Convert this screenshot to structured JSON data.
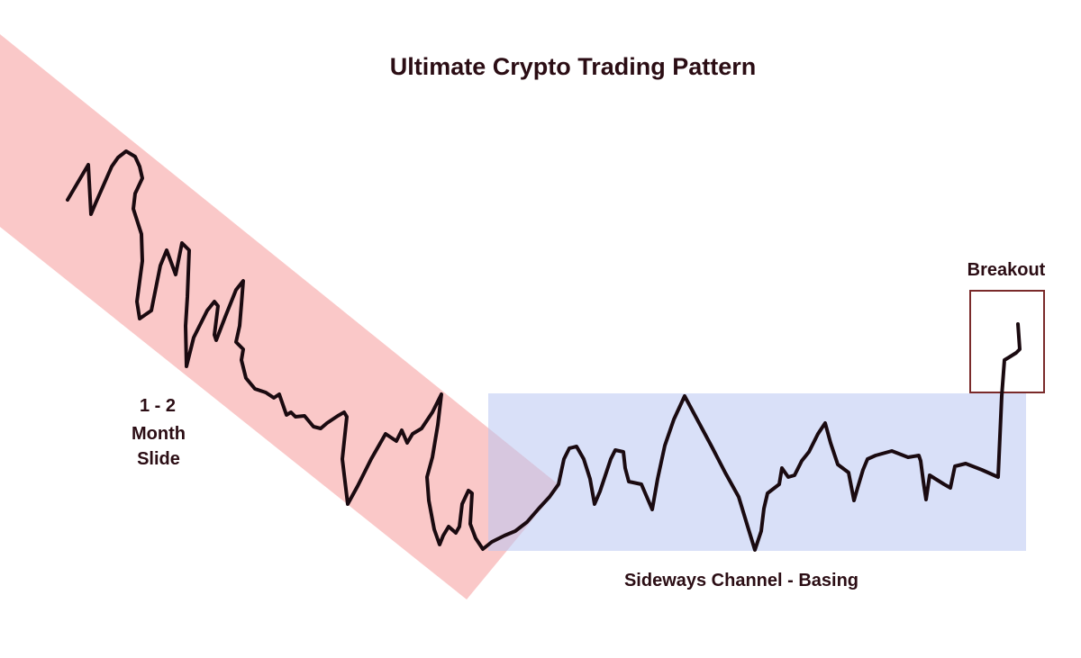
{
  "title": "Ultimate Crypto Trading Pattern",
  "labels": {
    "slide_line1": "1 - 2",
    "slide_line2": "Month",
    "slide_line3": "Slide",
    "channel": "Sideways Channel - Basing",
    "breakout": "Breakout"
  },
  "zones": [
    {
      "name": "slide",
      "label": "1 - 2 Month Slide",
      "color": "#f6a3a3",
      "opacity": 0.6
    },
    {
      "name": "channel",
      "label": "Sideways Channel - Basing",
      "color": "#b9c6f3",
      "opacity": 0.55
    },
    {
      "name": "breakout",
      "label": "Breakout",
      "color": "#7a2a2a"
    }
  ],
  "colors": {
    "text": "#2b0d14",
    "price_line": "#1a0a10"
  }
}
